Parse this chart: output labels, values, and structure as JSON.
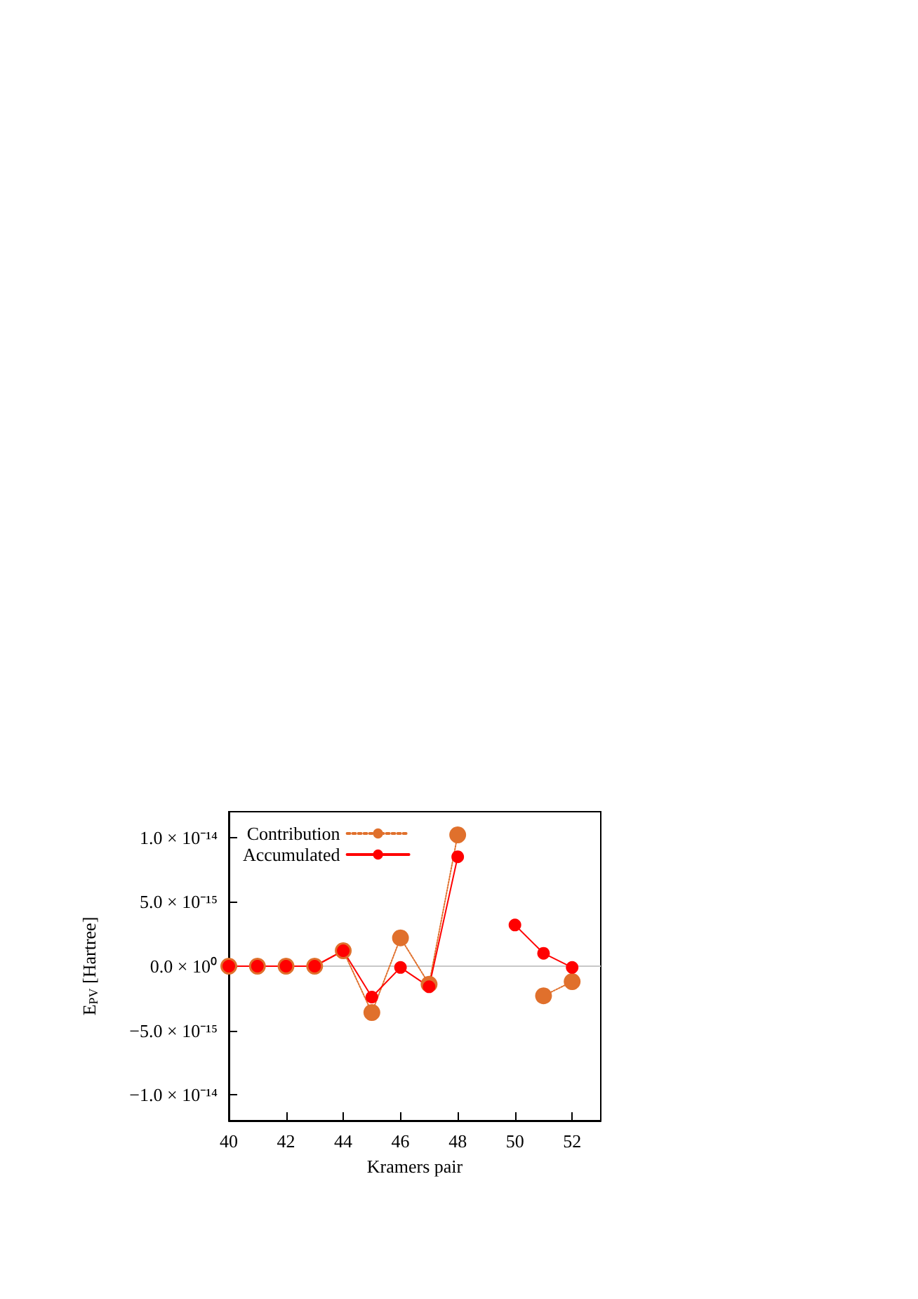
{
  "chart_data": {
    "type": "line",
    "xlabel": "Kramers pair",
    "ylabel": "E$_{PV}$ [Hartree]",
    "x": [
      40,
      41,
      42,
      43,
      44,
      45,
      46,
      47,
      48,
      49,
      50,
      51,
      52
    ],
    "series": [
      {
        "name": "Contribution",
        "color": "#e0702c",
        "line_style": "dotted",
        "marker": "circle",
        "values": [
          0,
          0,
          0,
          0,
          1.2e-15,
          -3.6e-15,
          2.2e-15,
          -1.4e-15,
          1.02e-14,
          null,
          null,
          -2.3e-15,
          -1.2e-15
        ]
      },
      {
        "name": "Accumulated",
        "color": "#ff0000",
        "line_style": "solid",
        "marker": "circle",
        "values": [
          0,
          0,
          0,
          0,
          1.2e-15,
          -2.4e-15,
          -1e-16,
          -1.6e-15,
          8.5e-15,
          null,
          3.2e-15,
          1e-15,
          -1e-16
        ]
      }
    ],
    "xlim": [
      40,
      53
    ],
    "xticks": [
      40,
      42,
      44,
      46,
      48,
      50,
      52
    ],
    "ylim": [
      -1.2e-14,
      1.2e-14
    ],
    "yticks": [
      {
        "value": -1e-14,
        "label": "−1.0 × 10⁻¹⁴"
      },
      {
        "value": -5e-15,
        "label": "−5.0 × 10⁻¹⁵"
      },
      {
        "value": 0,
        "label": "0.0 × 10⁰"
      },
      {
        "value": 5e-15,
        "label": "5.0 × 10⁻¹⁵"
      },
      {
        "value": 1e-14,
        "label": "1.0 × 10⁻¹⁴"
      }
    ],
    "ref_lines": [
      {
        "axis": "y",
        "value": 0,
        "color": "#c8c8c8"
      }
    ],
    "grid": false,
    "legend": "top left"
  }
}
